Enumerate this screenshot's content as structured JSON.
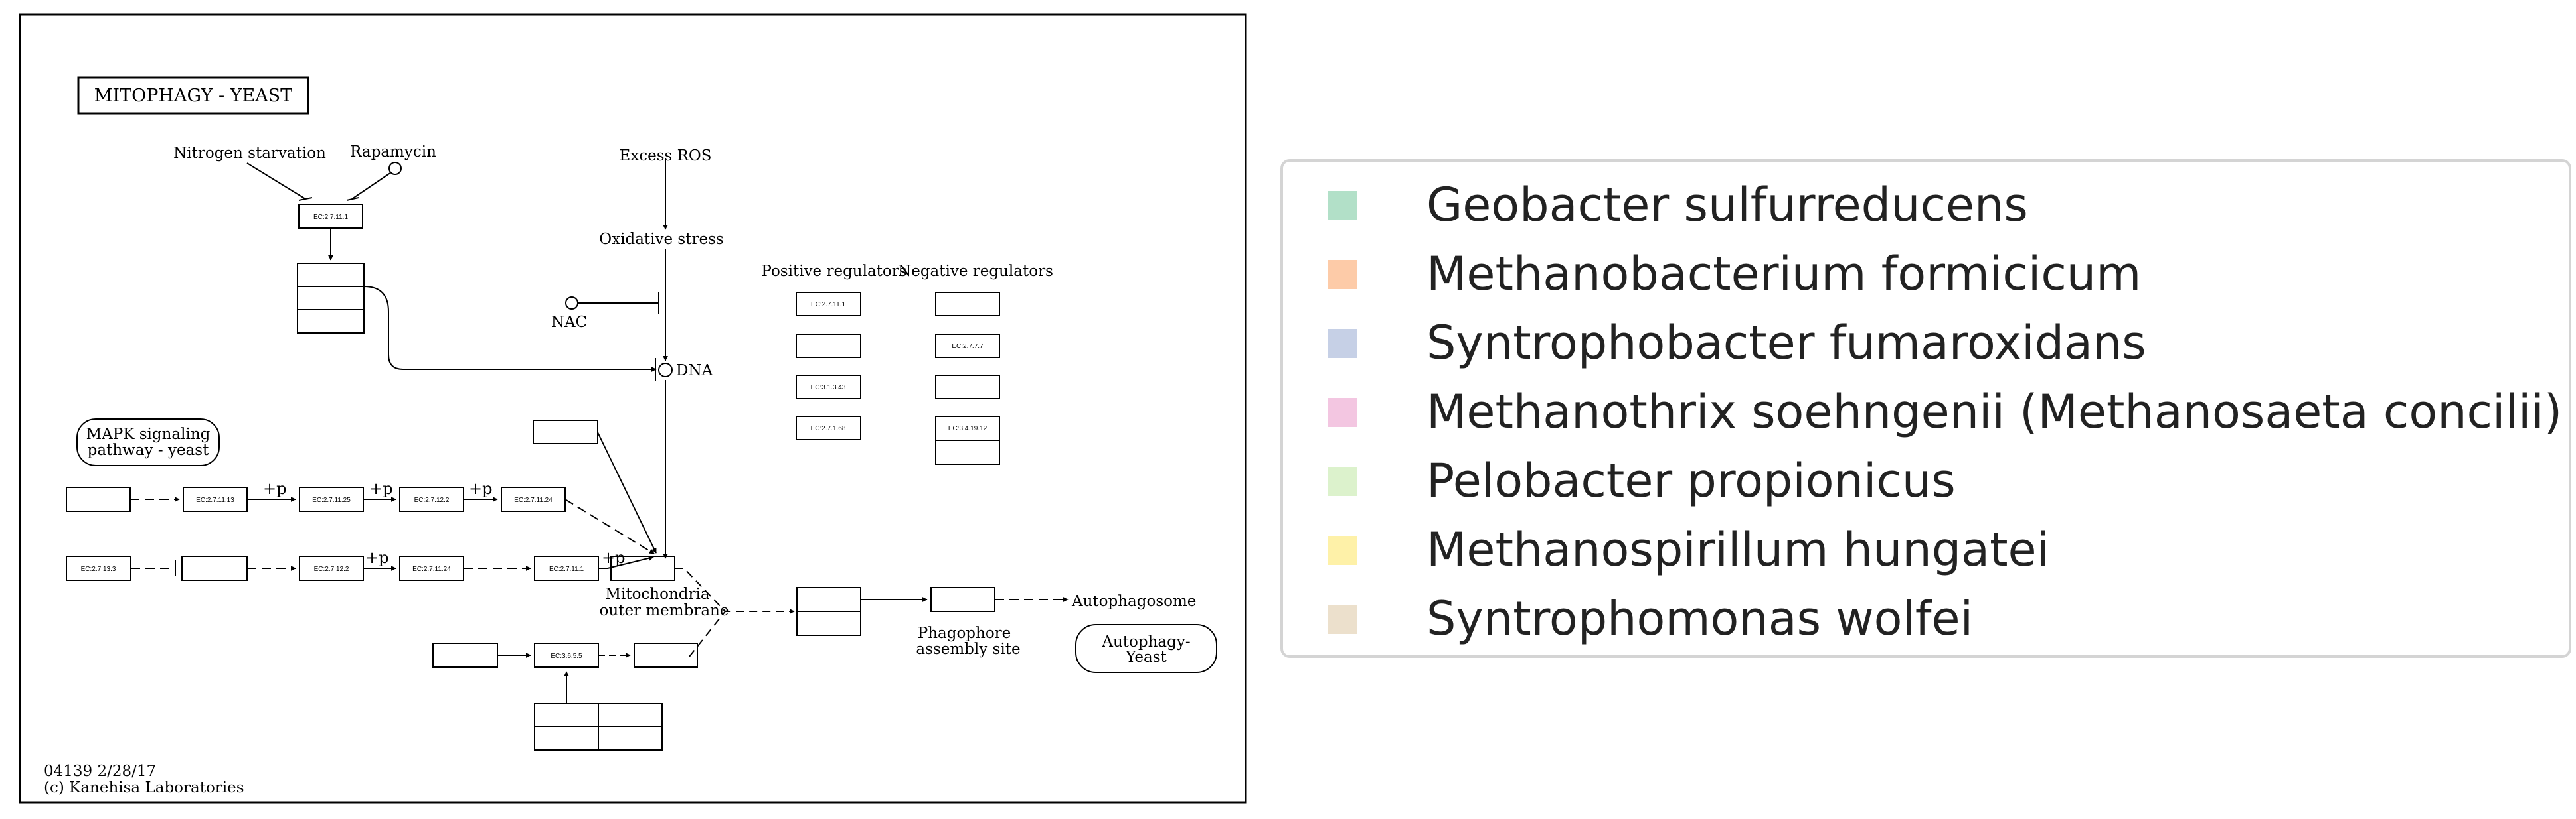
{
  "diagram": {
    "title": "MITOPHAGY - YEAST",
    "inputs": {
      "nitrogen_starvation": "Nitrogen starvation",
      "rapamycin": "Rapamycin",
      "excess_ros": "Excess ROS",
      "oxidative_stress": "Oxidative stress",
      "nac": "NAC",
      "dna": "DNA"
    },
    "columns": {
      "positive": "Positive regulators",
      "negative": "Negative regulators"
    },
    "ec_labels": {
      "tor": "EC:2.7.11.1",
      "pos1": "EC:2.7.11.1",
      "pos3": "EC:3.1.3.43",
      "pos4": "EC:2.7.1.68",
      "neg2": "EC:2.7.7.7",
      "neg4": "EC:3.4.19.12",
      "mapk1": "EC:2.7.11.13",
      "mapk2": "EC:2.7.11.25",
      "mapk3": "EC:2.7.12.2",
      "mapk4": "EC:2.7.11.24",
      "row2_1": "EC:2.7.13.3",
      "row2_3": "EC:2.7.12.2",
      "row2_4": "EC:2.7.11.24",
      "row2_5": "EC:2.7.11.1",
      "protease": "EC:3.6.5.5"
    },
    "phospho": "+p",
    "mapk_pathway": [
      "MAPK signaling",
      "pathway - yeast"
    ],
    "mito_membrane": [
      "Mitochondria",
      "outer membrane"
    ],
    "phagophore": [
      "Phagophore",
      "assembly site"
    ],
    "autophagosome": "Autophagosome",
    "autophagy_pathway": [
      "Autophagy-",
      "Yeast"
    ],
    "footer": [
      "04139 2/28/17",
      "(c) Kanehisa Laboratories"
    ]
  },
  "legend": {
    "items": [
      {
        "label": "Geobacter sulfurreducens",
        "color": "#b2e0c8"
      },
      {
        "label": "Methanobacterium formicicum",
        "color": "#fdcba8"
      },
      {
        "label": "Syntrophobacter fumaroxidans",
        "color": "#c6d0e6"
      },
      {
        "label": "Methanothrix soehngenii (Methanosaeta concilii)",
        "color": "#f3c6e1"
      },
      {
        "label": "Pelobacter propionicus",
        "color": "#dcf2cc"
      },
      {
        "label": "Methanospirillum hungatei",
        "color": "#fef1a8"
      },
      {
        "label": "Syntrophomonas wolfei",
        "color": "#ece0cc"
      }
    ]
  }
}
